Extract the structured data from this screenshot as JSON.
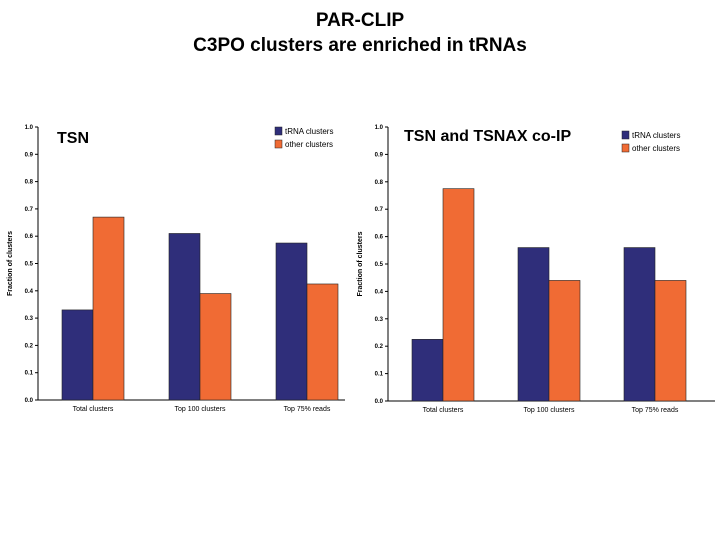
{
  "slide": {
    "title_line1": "PAR-CLIP",
    "title_line2": "C3PO clusters are enriched in tRNAs"
  },
  "colors": {
    "trna": "#2f2e7a",
    "other": "#f06b34",
    "axis": "#000000"
  },
  "chart_data": [
    {
      "type": "bar",
      "title": "TSN",
      "ylabel": "Fraction of clusters",
      "xlabel": "",
      "ylim": [
        0,
        1.0
      ],
      "yticks": [
        "0.0",
        "0.1",
        "0.2",
        "0.3",
        "0.4",
        "0.5",
        "0.6",
        "0.7",
        "0.8",
        "0.9",
        "1.0"
      ],
      "categories": [
        "Total clusters",
        "Top 100 clusters",
        "Top 75% reads"
      ],
      "series": [
        {
          "name": "tRNA clusters",
          "values": [
            0.33,
            0.61,
            0.575
          ]
        },
        {
          "name": "other clusters",
          "values": [
            0.67,
            0.39,
            0.425
          ]
        }
      ],
      "legend": "top-right",
      "grid": false
    },
    {
      "type": "bar",
      "title": "TSN and TSNAX co-IP",
      "ylabel": "Fraction of clusters",
      "xlabel": "",
      "ylim": [
        0,
        1.0
      ],
      "yticks": [
        "0.0",
        "0.1",
        "0.2",
        "0.3",
        "0.4",
        "0.5",
        "0.6",
        "0.7",
        "0.8",
        "0.9",
        "1.0"
      ],
      "categories": [
        "Total clusters",
        "Top 100 clusters",
        "Top 75% reads"
      ],
      "series": [
        {
          "name": "tRNA clusters",
          "values": [
            0.225,
            0.56,
            0.56
          ]
        },
        {
          "name": "other clusters",
          "values": [
            0.775,
            0.44,
            0.44
          ]
        }
      ],
      "legend": "top-right",
      "grid": false
    }
  ]
}
